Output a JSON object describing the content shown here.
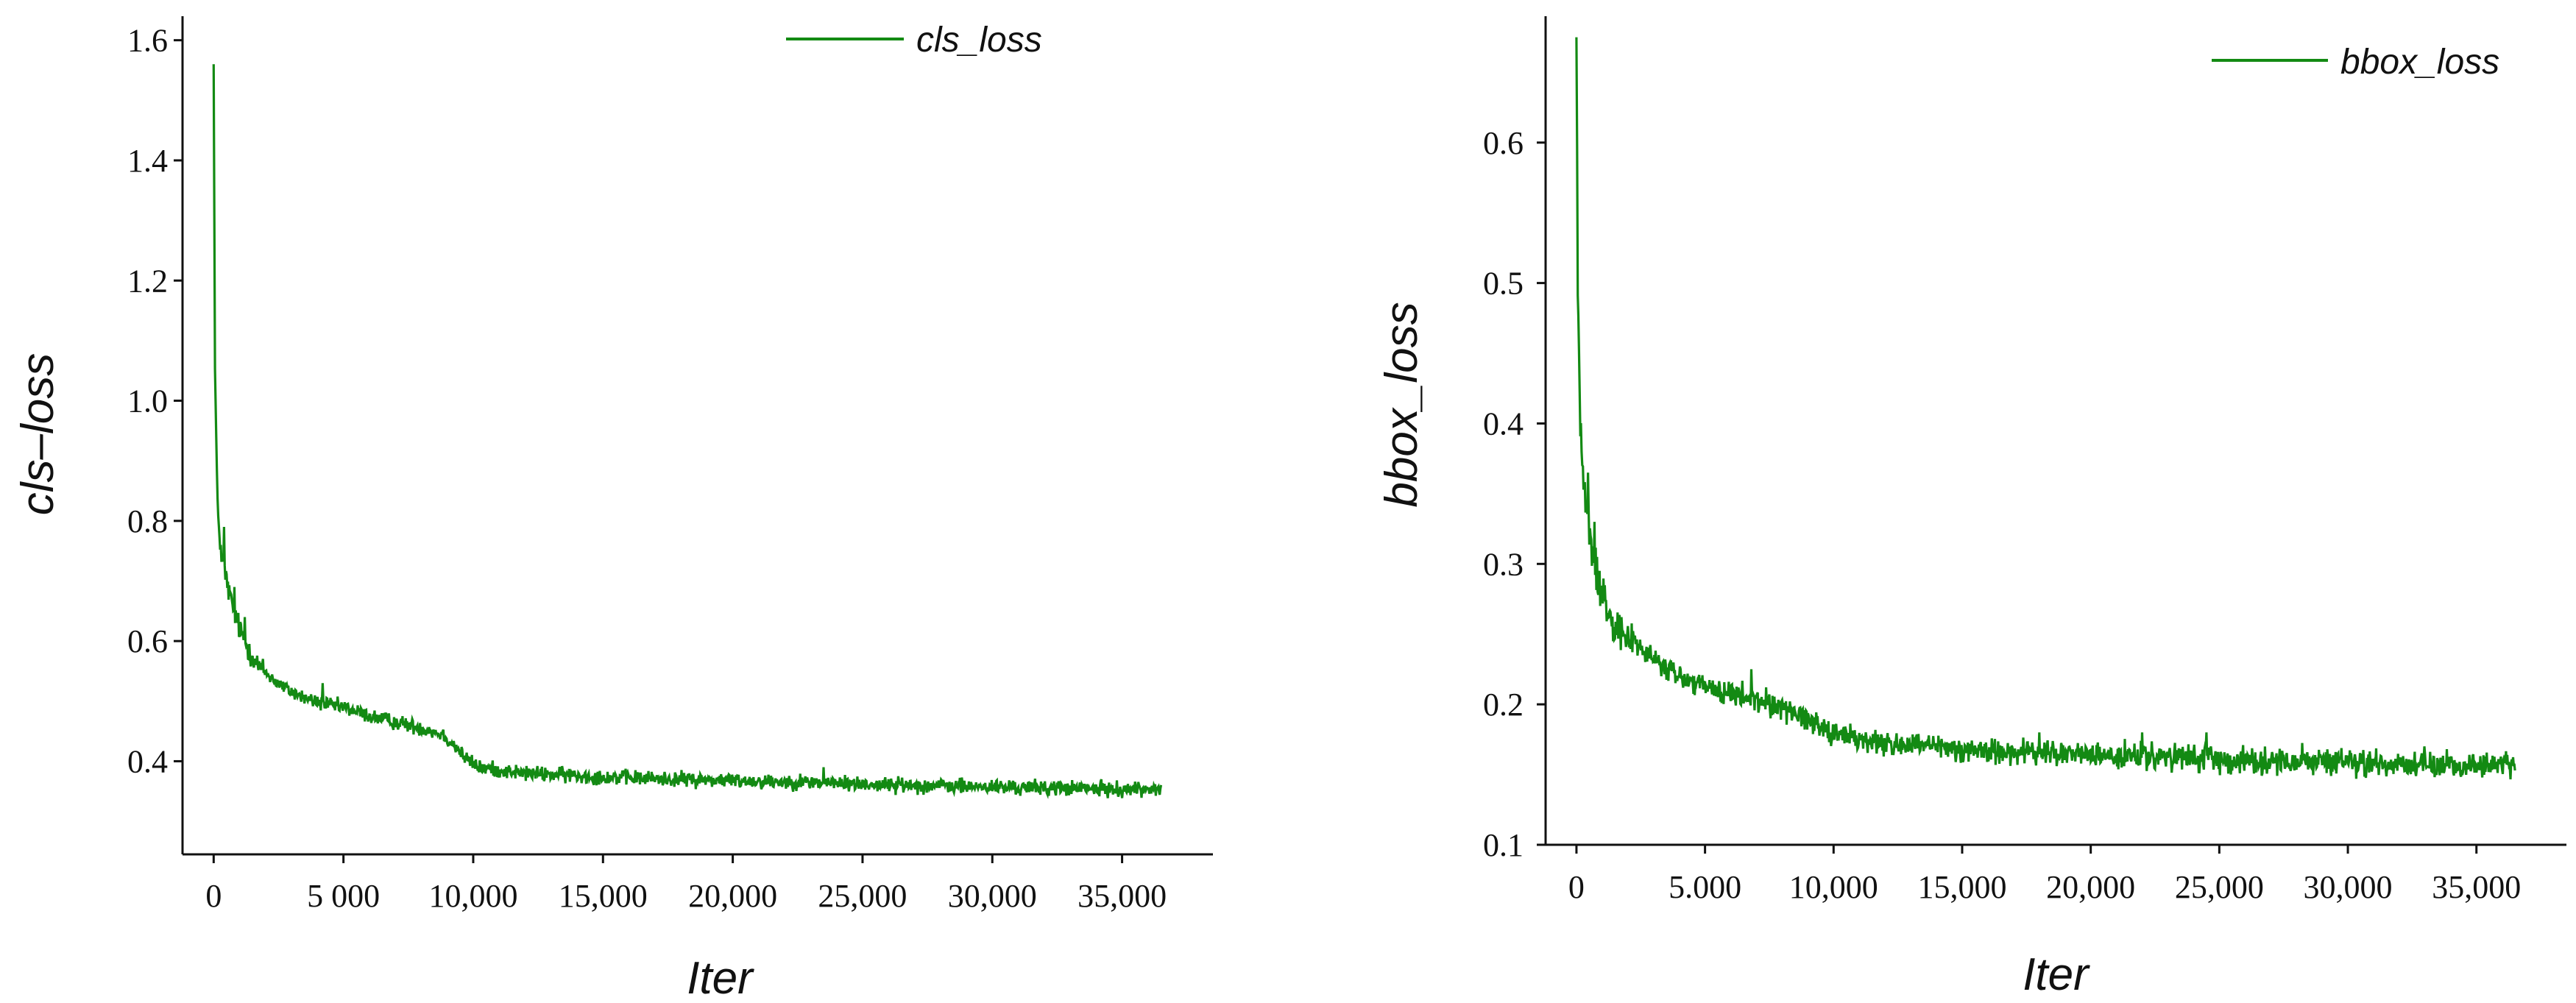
{
  "chart_data": [
    {
      "type": "line",
      "id": "cls",
      "title": "",
      "xlabel": "Iter",
      "ylabel": "cls–loss",
      "xlim": [
        -1200,
        38500
      ],
      "ylim": [
        0.245,
        1.64
      ],
      "xticks": [
        0,
        5000,
        10000,
        15000,
        20000,
        25000,
        30000,
        35000
      ],
      "xtick_labels": [
        "0",
        "5 000",
        "10,000",
        "15,000",
        "20,000",
        "25,000",
        "30,000",
        "35,000"
      ],
      "yticks": [
        0.4,
        0.6,
        0.8,
        1.0,
        1.2,
        1.4,
        1.6
      ],
      "ytick_labels": [
        "0.4",
        "0.6",
        "0.8",
        "1.0",
        "1.2",
        "1.4",
        "1.6"
      ],
      "grid": false,
      "legend_position": "top-right",
      "color": "#138a13",
      "series": [
        {
          "name": "cls_loss",
          "x": [
            0,
            50,
            150,
            300,
            500,
            700,
            1000,
            1300,
            1700,
            2200,
            2800,
            3500,
            4200,
            5000,
            6000,
            7000,
            8000,
            8800,
            9300,
            9700,
            10200,
            11000,
            12000,
            13500,
            15000,
            17000,
            19000,
            21000,
            23000,
            25000,
            27000,
            29000,
            31000,
            33000,
            35000,
            36500
          ],
          "y": [
            1.56,
            1.05,
            0.82,
            0.74,
            0.7,
            0.66,
            0.62,
            0.59,
            0.56,
            0.54,
            0.52,
            0.505,
            0.495,
            0.49,
            0.475,
            0.465,
            0.455,
            0.445,
            0.425,
            0.405,
            0.39,
            0.385,
            0.38,
            0.377,
            0.374,
            0.371,
            0.369,
            0.367,
            0.365,
            0.362,
            0.36,
            0.358,
            0.356,
            0.355,
            0.353,
            0.355
          ],
          "noise": 0.009,
          "spikes": [
            [
              400,
              0.79
            ],
            [
              800,
              0.69
            ],
            [
              1200,
              0.64
            ],
            [
              23500,
              0.39
            ],
            [
              4200,
              0.53
            ]
          ]
        }
      ]
    },
    {
      "type": "line",
      "id": "bbox",
      "title": "",
      "xlabel": "Iter",
      "ylabel": "bbox_loss",
      "xlim": [
        -1200,
        38500
      ],
      "ylim": [
        0.1,
        0.69
      ],
      "xticks": [
        0,
        5000,
        10000,
        15000,
        20000,
        25000,
        30000,
        35000
      ],
      "xtick_labels": [
        "0",
        "5.000",
        "10,000",
        "15,000",
        "20,000",
        "25,000",
        "30,000",
        "35,000"
      ],
      "yticks": [
        0.1,
        0.2,
        0.3,
        0.4,
        0.5,
        0.6
      ],
      "ytick_labels": [
        "0.1",
        "0.2",
        "0.3",
        "0.4",
        "0.5",
        "0.6"
      ],
      "grid": false,
      "legend_position": "top-right",
      "color": "#138a13",
      "series": [
        {
          "name": "bbox_loss",
          "x": [
            0,
            50,
            150,
            300,
            500,
            700,
            1000,
            1300,
            1700,
            2200,
            2800,
            3500,
            4200,
            5000,
            6000,
            7000,
            8000,
            9000,
            10000,
            11000,
            12000,
            13500,
            15000,
            17000,
            19000,
            21000,
            23000,
            25000,
            27000,
            29000,
            31000,
            33000,
            35000,
            36500
          ],
          "y": [
            0.675,
            0.5,
            0.4,
            0.35,
            0.32,
            0.3,
            0.28,
            0.265,
            0.255,
            0.245,
            0.235,
            0.225,
            0.218,
            0.212,
            0.207,
            0.203,
            0.198,
            0.19,
            0.18,
            0.175,
            0.172,
            0.17,
            0.168,
            0.166,
            0.165,
            0.163,
            0.162,
            0.161,
            0.16,
            0.159,
            0.158,
            0.157,
            0.156,
            0.158
          ],
          "noise": 0.0065,
          "spikes": [
            [
              450,
              0.365
            ],
            [
              700,
              0.33
            ],
            [
              900,
              0.295
            ],
            [
              6800,
              0.225
            ],
            [
              18000,
              0.18
            ],
            [
              22000,
              0.18
            ],
            [
              24500,
              0.18
            ]
          ]
        }
      ]
    }
  ]
}
